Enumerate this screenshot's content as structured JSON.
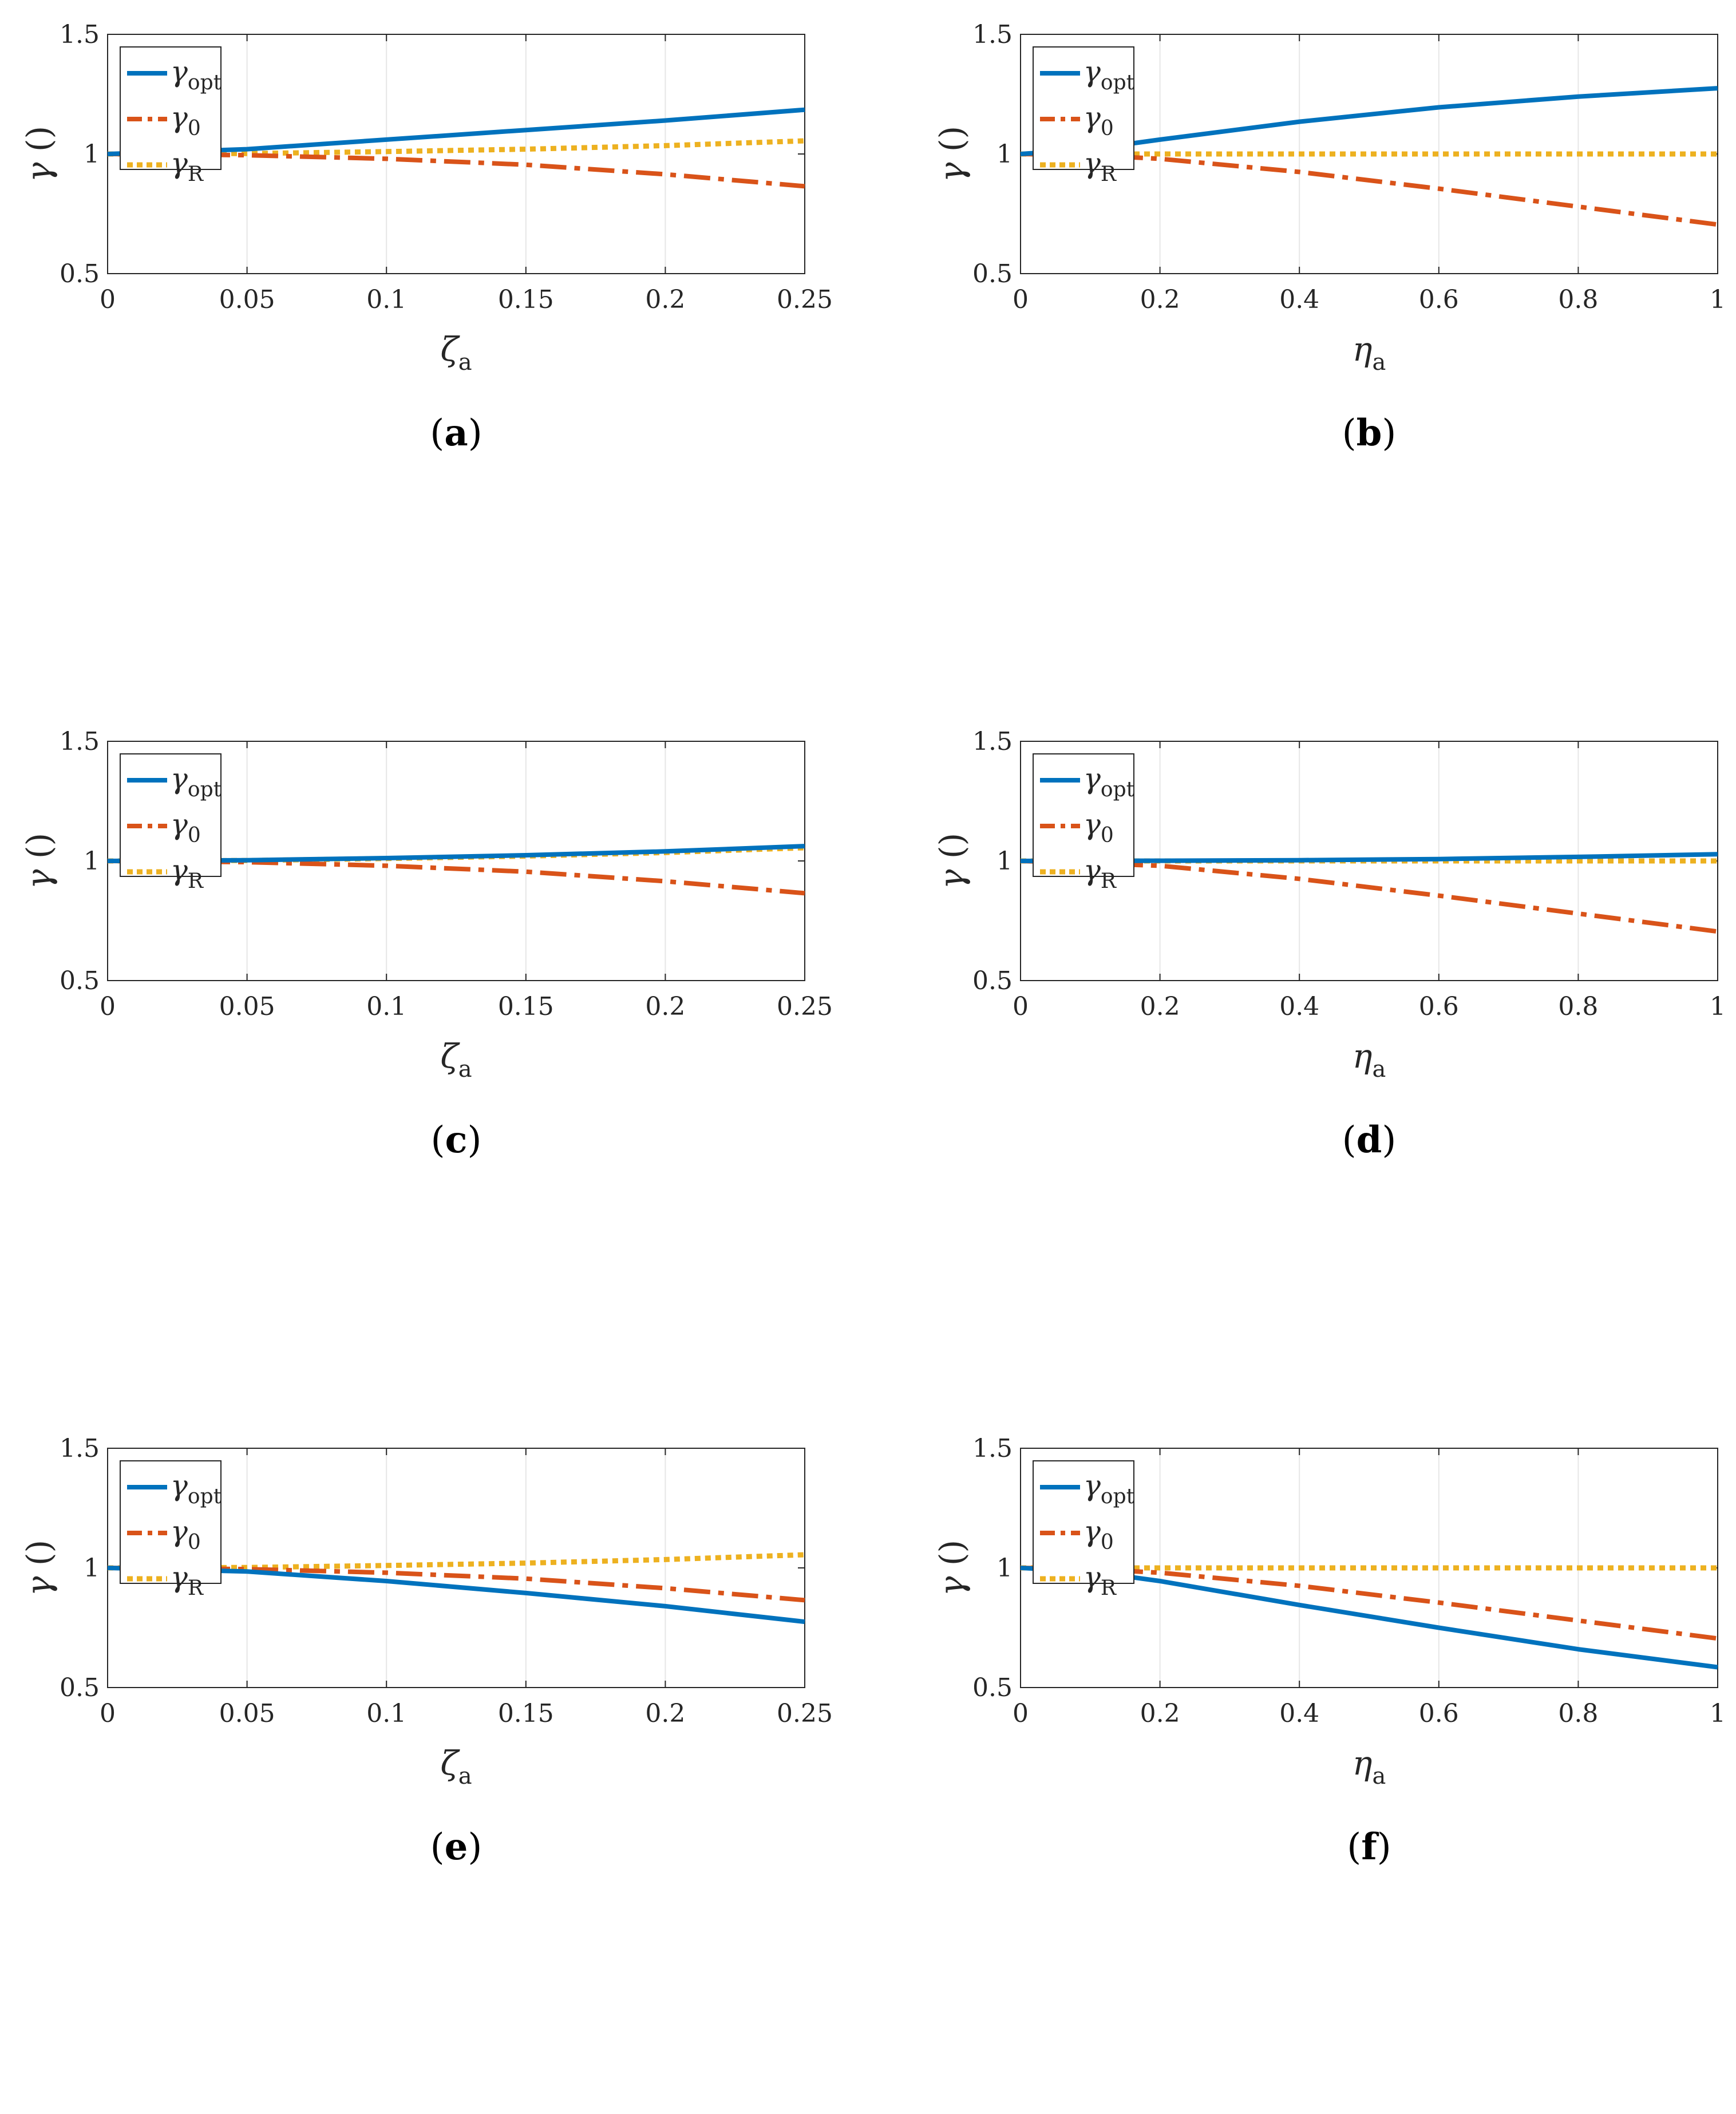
{
  "colors": {
    "opt": "#0072BD",
    "zero": "#D95319",
    "r": "#EDB120",
    "grid": "#e6e6e6",
    "axis": "#262626"
  },
  "ylabel": {
    "main": "γ",
    "rest": " ()"
  },
  "chart_data": [
    {
      "id": "a",
      "type": "line",
      "caption": "a",
      "xlabel": {
        "main": "ζ",
        "sub": "a"
      },
      "xlim": [
        0,
        0.25
      ],
      "ylim": [
        0.5,
        1.5
      ],
      "xticks": [
        0,
        0.05,
        0.1,
        0.15,
        0.2,
        0.25
      ],
      "xtick_labels": [
        "0",
        "0.05",
        "0.1",
        "0.15",
        "0.2",
        "0.25"
      ],
      "yticks": [
        0.5,
        1,
        1.5
      ],
      "ytick_labels": [
        "0.5",
        "1",
        "1.5"
      ],
      "grid": "x",
      "legend": "top-left",
      "x": [
        0,
        0.05,
        0.1,
        0.15,
        0.2,
        0.25
      ],
      "series": [
        {
          "key": "opt",
          "name": {
            "main": "γ",
            "sub": "opt"
          },
          "style": "solid",
          "values": [
            1.0,
            1.02,
            1.06,
            1.1,
            1.14,
            1.185
          ]
        },
        {
          "key": "zero",
          "name": {
            "main": "γ",
            "sub": "0"
          },
          "style": "dashdot",
          "values": [
            1.0,
            0.995,
            0.98,
            0.955,
            0.915,
            0.865
          ]
        },
        {
          "key": "r",
          "name": {
            "main": "γ",
            "sub": "R"
          },
          "style": "dotted",
          "values": [
            1.0,
            1.002,
            1.01,
            1.02,
            1.035,
            1.055
          ]
        }
      ]
    },
    {
      "id": "b",
      "type": "line",
      "caption": "b",
      "xlabel": {
        "main": "η",
        "sub": "a"
      },
      "xlim": [
        0,
        1
      ],
      "ylim": [
        0.5,
        1.5
      ],
      "xticks": [
        0,
        0.2,
        0.4,
        0.6,
        0.8,
        1
      ],
      "xtick_labels": [
        "0",
        "0.2",
        "0.4",
        "0.6",
        "0.8",
        "1"
      ],
      "yticks": [
        0.5,
        1,
        1.5
      ],
      "ytick_labels": [
        "0.5",
        "1",
        "1.5"
      ],
      "grid": "x",
      "legend": "top-left",
      "x": [
        0,
        0.1,
        0.2,
        0.4,
        0.6,
        0.8,
        1
      ],
      "series": [
        {
          "key": "opt",
          "name": {
            "main": "γ",
            "sub": "opt"
          },
          "style": "solid",
          "values": [
            1.0,
            1.02,
            1.06,
            1.135,
            1.195,
            1.24,
            1.275
          ]
        },
        {
          "key": "zero",
          "name": {
            "main": "γ",
            "sub": "0"
          },
          "style": "dashdot",
          "values": [
            1.0,
            0.995,
            0.98,
            0.925,
            0.855,
            0.78,
            0.705
          ]
        },
        {
          "key": "r",
          "name": {
            "main": "γ",
            "sub": "R"
          },
          "style": "dotted",
          "values": [
            1.0,
            1.0,
            1.0,
            1.0,
            1.0,
            1.0,
            1.0
          ]
        }
      ]
    },
    {
      "id": "c",
      "type": "line",
      "caption": "c",
      "xlabel": {
        "main": "ζ",
        "sub": "a"
      },
      "xlim": [
        0,
        0.25
      ],
      "ylim": [
        0.5,
        1.5
      ],
      "xticks": [
        0,
        0.05,
        0.1,
        0.15,
        0.2,
        0.25
      ],
      "xtick_labels": [
        "0",
        "0.05",
        "0.1",
        "0.15",
        "0.2",
        "0.25"
      ],
      "yticks": [
        0.5,
        1,
        1.5
      ],
      "ytick_labels": [
        "0.5",
        "1",
        "1.5"
      ],
      "grid": "x",
      "legend": "top-left",
      "x": [
        0,
        0.05,
        0.1,
        0.15,
        0.2,
        0.25
      ],
      "series": [
        {
          "key": "opt",
          "name": {
            "main": "γ",
            "sub": "opt"
          },
          "style": "solid",
          "values": [
            1.0,
            1.003,
            1.012,
            1.024,
            1.04,
            1.062
          ]
        },
        {
          "key": "zero",
          "name": {
            "main": "γ",
            "sub": "0"
          },
          "style": "dashdot",
          "values": [
            1.0,
            0.995,
            0.98,
            0.955,
            0.915,
            0.865
          ]
        },
        {
          "key": "r",
          "name": {
            "main": "γ",
            "sub": "R"
          },
          "style": "dotted",
          "values": [
            1.0,
            1.002,
            1.01,
            1.02,
            1.035,
            1.055
          ]
        }
      ]
    },
    {
      "id": "d",
      "type": "line",
      "caption": "d",
      "xlabel": {
        "main": "η",
        "sub": "a"
      },
      "xlim": [
        0,
        1
      ],
      "ylim": [
        0.5,
        1.5
      ],
      "xticks": [
        0,
        0.2,
        0.4,
        0.6,
        0.8,
        1
      ],
      "xtick_labels": [
        "0",
        "0.2",
        "0.4",
        "0.6",
        "0.8",
        "1"
      ],
      "yticks": [
        0.5,
        1,
        1.5
      ],
      "ytick_labels": [
        "0.5",
        "1",
        "1.5"
      ],
      "grid": "x",
      "legend": "top-left",
      "x": [
        0,
        0.2,
        0.4,
        0.6,
        0.8,
        1
      ],
      "series": [
        {
          "key": "opt",
          "name": {
            "main": "γ",
            "sub": "opt"
          },
          "style": "solid",
          "values": [
            1.0,
            1.001,
            1.003,
            1.008,
            1.017,
            1.028
          ]
        },
        {
          "key": "zero",
          "name": {
            "main": "γ",
            "sub": "0"
          },
          "style": "dashdot",
          "values": [
            1.0,
            0.98,
            0.925,
            0.855,
            0.78,
            0.705
          ]
        },
        {
          "key": "r",
          "name": {
            "main": "γ",
            "sub": "R"
          },
          "style": "dotted",
          "values": [
            1.0,
            1.0,
            1.0,
            1.0,
            1.0,
            1.0
          ]
        }
      ]
    },
    {
      "id": "e",
      "type": "line",
      "caption": "e",
      "xlabel": {
        "main": "ζ",
        "sub": "a"
      },
      "xlim": [
        0,
        0.25
      ],
      "ylim": [
        0.5,
        1.5
      ],
      "xticks": [
        0,
        0.05,
        0.1,
        0.15,
        0.2,
        0.25
      ],
      "xtick_labels": [
        "0",
        "0.05",
        "0.1",
        "0.15",
        "0.2",
        "0.25"
      ],
      "yticks": [
        0.5,
        1,
        1.5
      ],
      "ytick_labels": [
        "0.5",
        "1",
        "1.5"
      ],
      "grid": "x",
      "legend": "top-left",
      "x": [
        0,
        0.05,
        0.1,
        0.15,
        0.2,
        0.25
      ],
      "series": [
        {
          "key": "opt",
          "name": {
            "main": "γ",
            "sub": "opt"
          },
          "style": "solid",
          "values": [
            1.0,
            0.985,
            0.945,
            0.895,
            0.84,
            0.775
          ]
        },
        {
          "key": "zero",
          "name": {
            "main": "γ",
            "sub": "0"
          },
          "style": "dashdot",
          "values": [
            1.0,
            0.995,
            0.98,
            0.955,
            0.915,
            0.865
          ]
        },
        {
          "key": "r",
          "name": {
            "main": "γ",
            "sub": "R"
          },
          "style": "dotted",
          "values": [
            1.0,
            1.002,
            1.01,
            1.02,
            1.035,
            1.055
          ]
        }
      ]
    },
    {
      "id": "f",
      "type": "line",
      "caption": "f",
      "xlabel": {
        "main": "η",
        "sub": "a"
      },
      "xlim": [
        0,
        1
      ],
      "ylim": [
        0.5,
        1.5
      ],
      "xticks": [
        0,
        0.2,
        0.4,
        0.6,
        0.8,
        1
      ],
      "xtick_labels": [
        "0",
        "0.2",
        "0.4",
        "0.6",
        "0.8",
        "1"
      ],
      "yticks": [
        0.5,
        1,
        1.5
      ],
      "ytick_labels": [
        "0.5",
        "1",
        "1.5"
      ],
      "grid": "x",
      "legend": "top-left",
      "x": [
        0,
        0.1,
        0.2,
        0.4,
        0.6,
        0.8,
        1
      ],
      "series": [
        {
          "key": "opt",
          "name": {
            "main": "γ",
            "sub": "opt"
          },
          "style": "solid",
          "values": [
            1.0,
            0.985,
            0.945,
            0.845,
            0.75,
            0.66,
            0.585
          ]
        },
        {
          "key": "zero",
          "name": {
            "main": "γ",
            "sub": "0"
          },
          "style": "dashdot",
          "values": [
            1.0,
            0.995,
            0.98,
            0.925,
            0.855,
            0.78,
            0.705
          ]
        },
        {
          "key": "r",
          "name": {
            "main": "γ",
            "sub": "R"
          },
          "style": "dotted",
          "values": [
            1.0,
            1.0,
            1.0,
            1.0,
            1.0,
            1.0,
            1.0
          ]
        }
      ]
    }
  ]
}
